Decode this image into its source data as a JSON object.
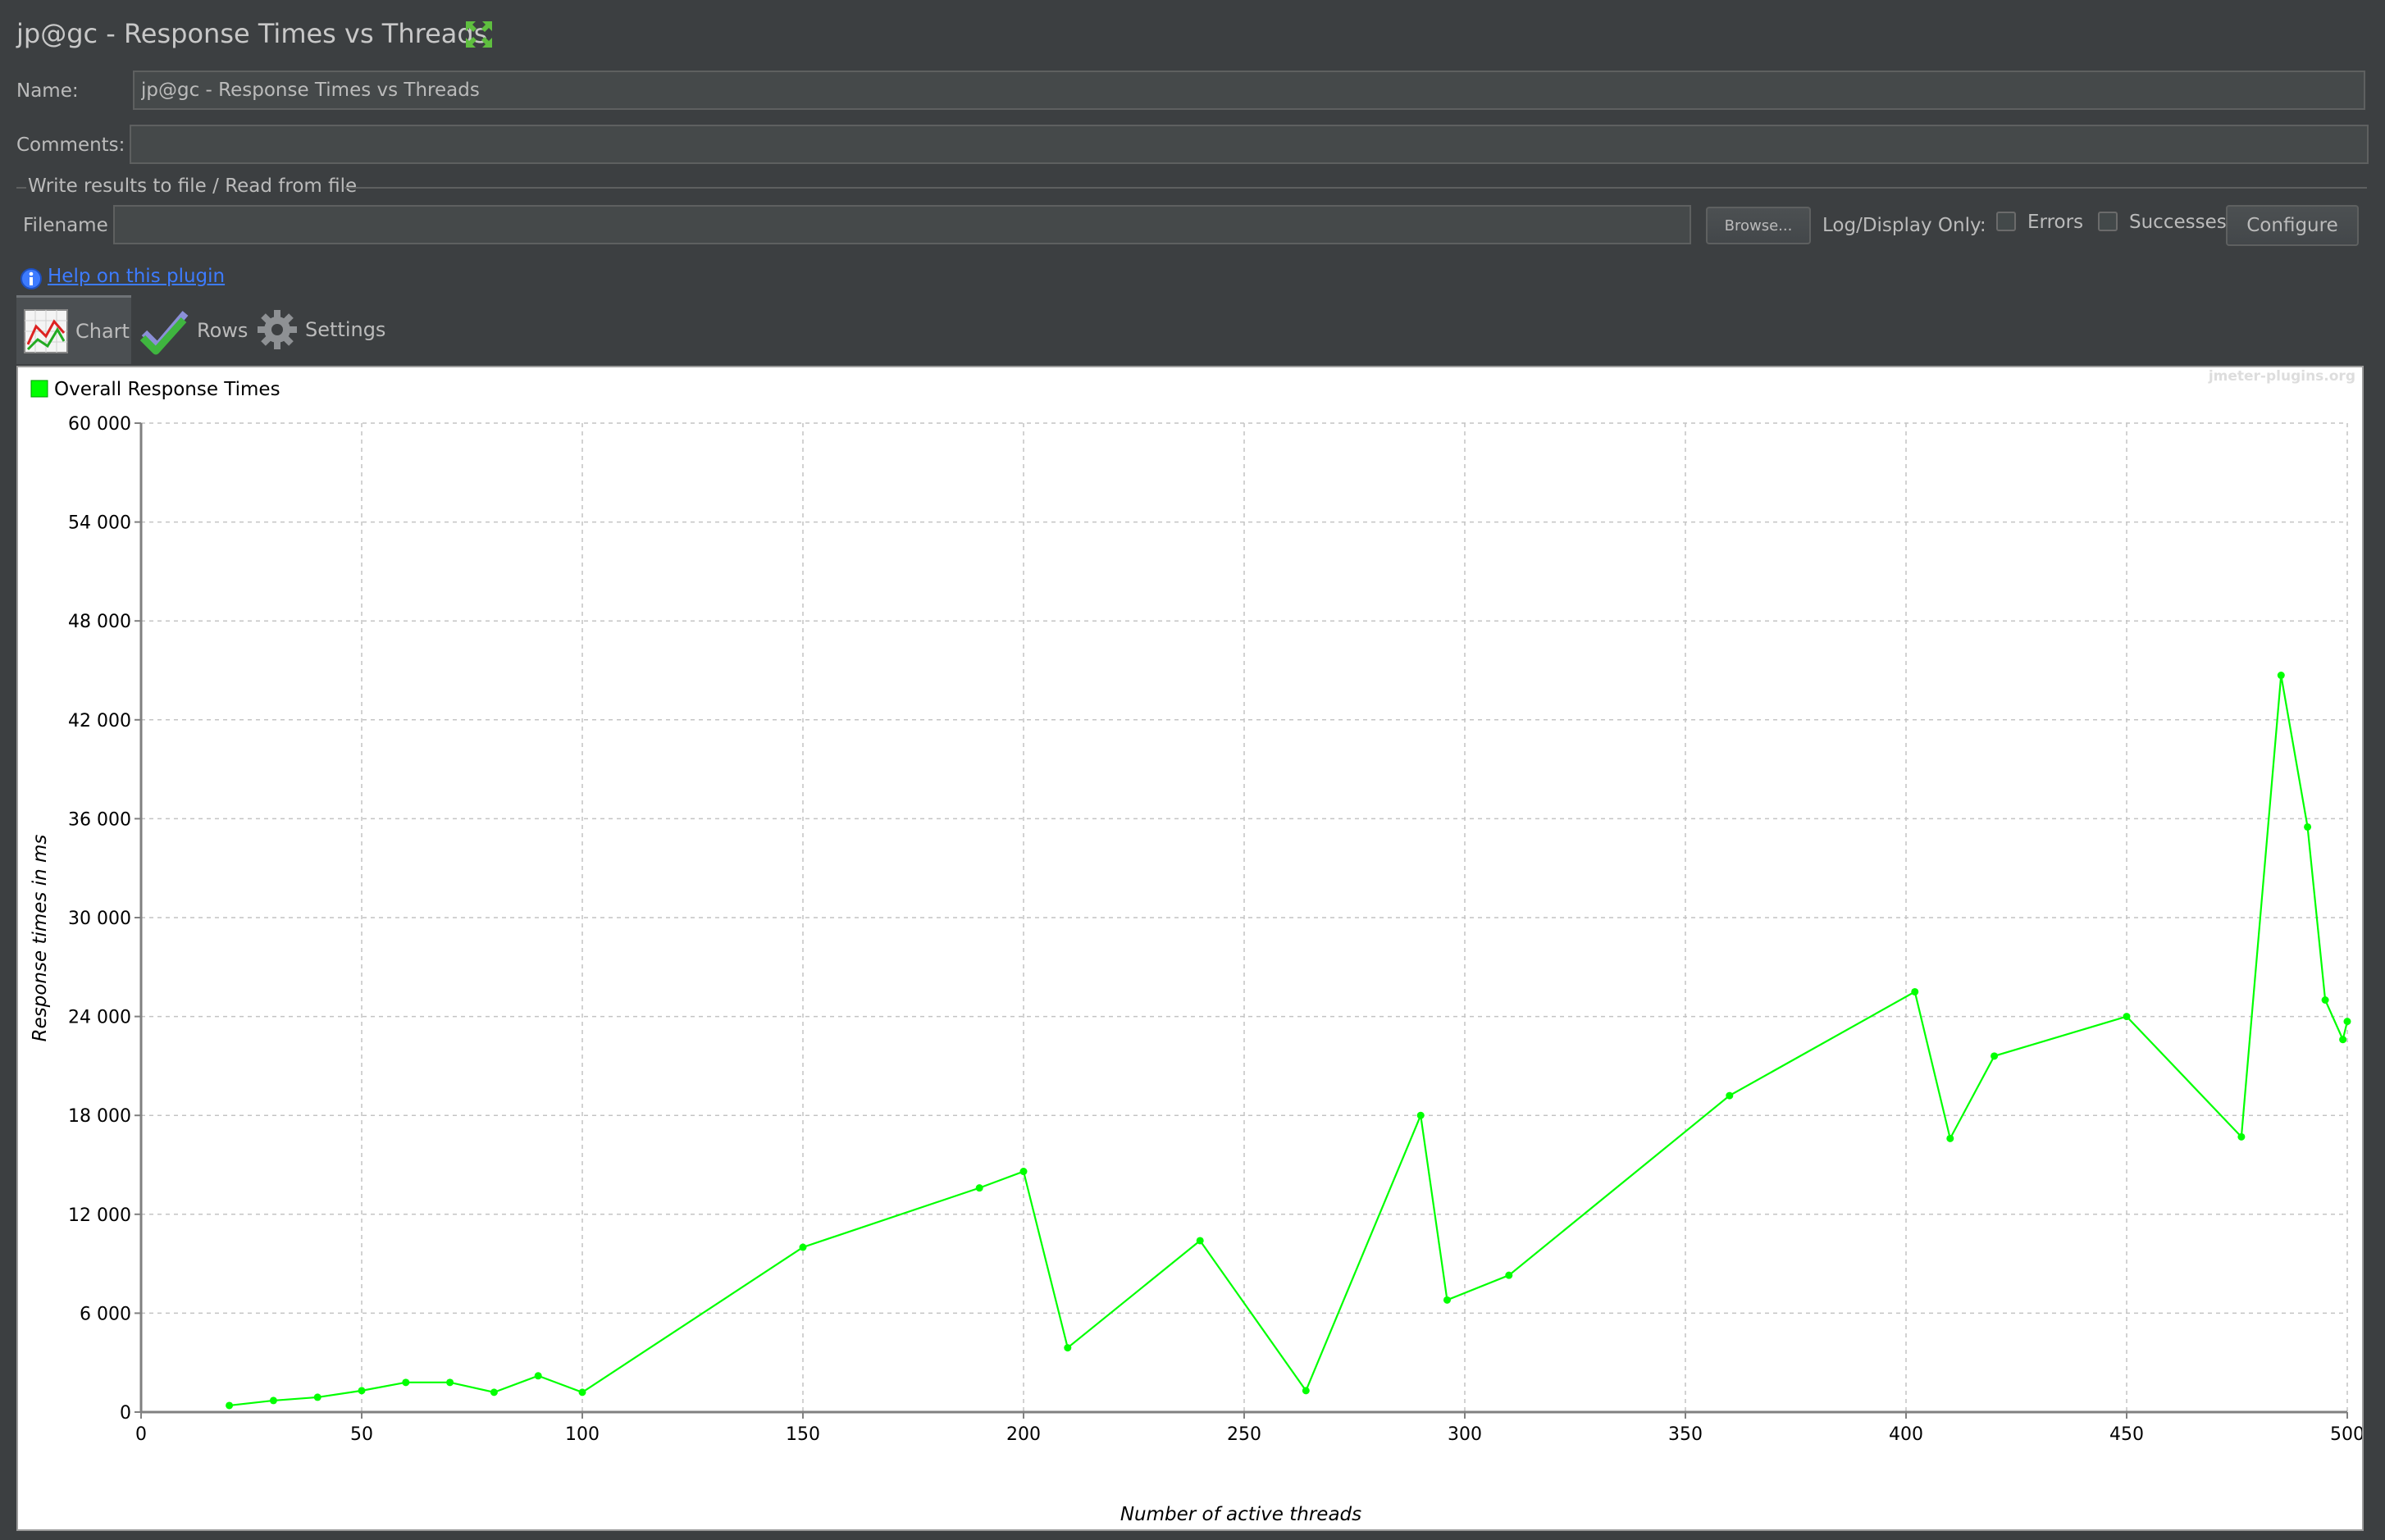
{
  "window": {
    "title": "jp@gc - Response Times vs Threads"
  },
  "form": {
    "name_label": "Name:",
    "name_value": "jp@gc - Response Times vs Threads",
    "comments_label": "Comments:",
    "comments_value": ""
  },
  "file_group": {
    "title": "Write results to file / Read from file",
    "filename_label": "Filename",
    "filename_value": "",
    "browse_label": "Browse...",
    "log_display_label": "Log/Display Only:",
    "errors_label": "Errors",
    "errors_checked": false,
    "successes_label": "Successes",
    "successes_checked": false,
    "configure_label": "Configure"
  },
  "help": {
    "link_text": "Help on this plugin",
    "icon": "info-icon"
  },
  "tabs": [
    {
      "label": "Chart",
      "icon": "line-chart-icon",
      "active": true
    },
    {
      "label": "Rows",
      "icon": "checkmarks-icon",
      "active": false
    },
    {
      "label": "Settings",
      "icon": "gear-icon",
      "active": false
    }
  ],
  "watermark": "jmeter-plugins.org",
  "colors": {
    "series": "#00ff00",
    "background": "#3c3f41",
    "link": "#3d7bff"
  },
  "chart_data": {
    "type": "line",
    "title": "",
    "xlabel": "Number of active threads",
    "ylabel": "Response times in ms",
    "xlim": [
      0,
      500
    ],
    "ylim": [
      0,
      60000
    ],
    "x_ticks": [
      0,
      50,
      100,
      150,
      200,
      250,
      300,
      350,
      400,
      450,
      500
    ],
    "y_ticks": [
      0,
      6000,
      12000,
      18000,
      24000,
      30000,
      36000,
      42000,
      48000,
      54000,
      60000
    ],
    "x_tick_labels": [
      "0",
      "50",
      "100",
      "150",
      "200",
      "250",
      "300",
      "350",
      "400",
      "450",
      "500"
    ],
    "y_tick_labels": [
      "0",
      "6 000",
      "12 000",
      "18 000",
      "24 000",
      "30 000",
      "36 000",
      "42 000",
      "48 000",
      "54 000",
      "60 000"
    ],
    "grid": true,
    "legend_position": "top-left",
    "series": [
      {
        "name": "Overall Response Times",
        "color": "#00ff00",
        "x": [
          20,
          30,
          40,
          50,
          60,
          70,
          80,
          90,
          100,
          150,
          190,
          200,
          210,
          240,
          264,
          290,
          296,
          310,
          360,
          402,
          410,
          420,
          450,
          476,
          485,
          491,
          495,
          499,
          500
        ],
        "y": [
          400,
          700,
          900,
          1300,
          1800,
          1800,
          1200,
          2200,
          1200,
          10000,
          13600,
          14600,
          3900,
          10400,
          1300,
          18000,
          6800,
          8300,
          19200,
          25500,
          16600,
          21600,
          24000,
          16700,
          44700,
          35500,
          25000,
          22600,
          23700
        ]
      }
    ]
  }
}
